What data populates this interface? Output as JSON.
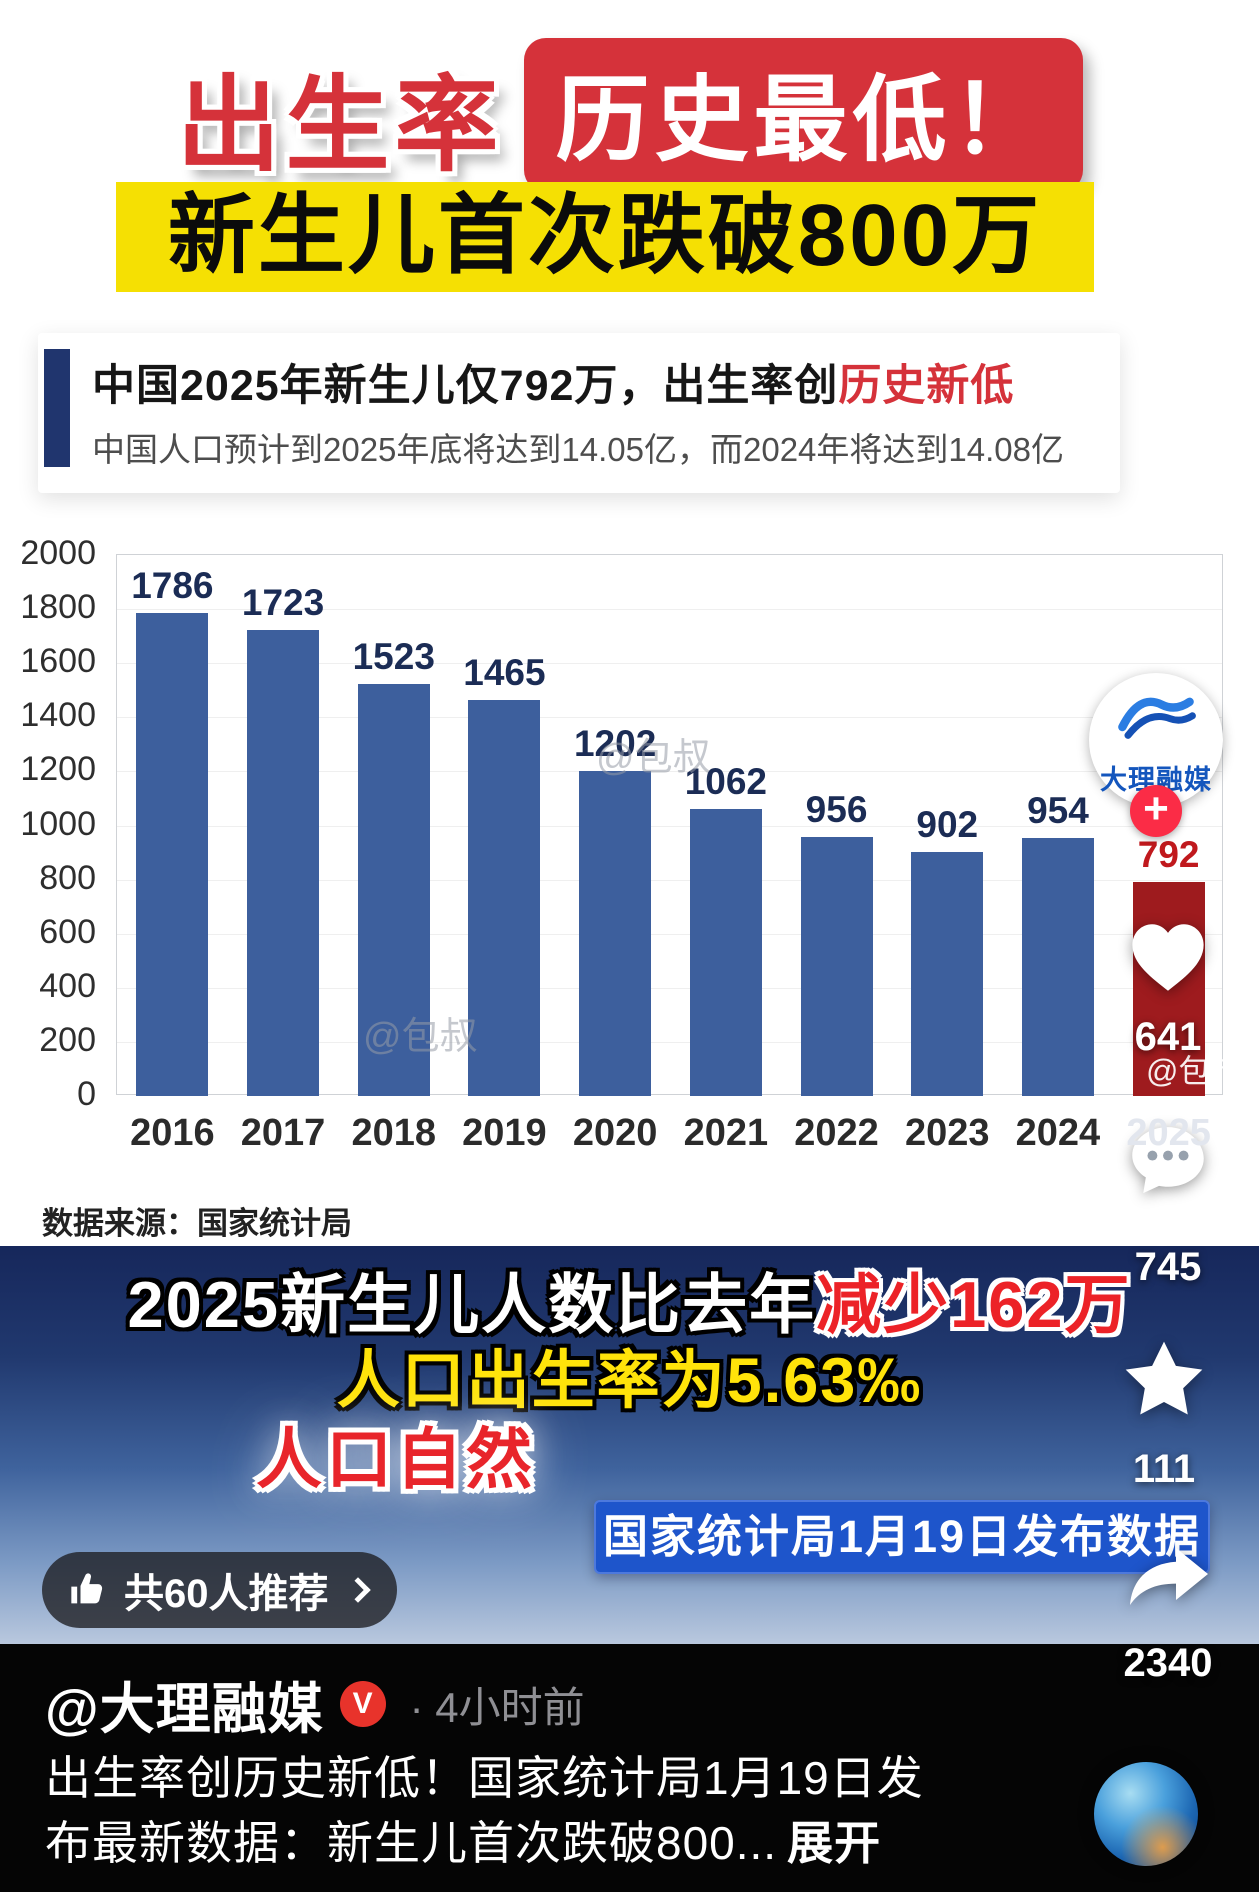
{
  "colors": {
    "accent_red": "#d5323a",
    "banner_yellow": "#f5e003",
    "bar_blue": "#3d5f9d",
    "bar_red": "#9e1b1e",
    "badge_blue": "#1e55cb"
  },
  "header": {
    "title": "出生率",
    "title_badge": "历史最低！",
    "banner": "新生儿首次跌破800万"
  },
  "info_card": {
    "headline": "中国2025年新生儿仅792万，出生率创",
    "headline_highlight": "历史新低",
    "subtitle": "中国人口预计到2025年底将达到14.05亿，而2024年将达到14.08亿"
  },
  "chart_data": {
    "type": "bar",
    "categories": [
      "2016",
      "2017",
      "2018",
      "2019",
      "2020",
      "2021",
      "2022",
      "2023",
      "2024",
      "2025"
    ],
    "values": [
      1786,
      1723,
      1523,
      1465,
      1202,
      1062,
      956,
      902,
      954,
      792
    ],
    "ylim": [
      0,
      2000
    ],
    "yticks": [
      0,
      200,
      400,
      600,
      800,
      1000,
      1200,
      1400,
      1600,
      1800,
      2000
    ],
    "grid": true,
    "legend": "none",
    "bar_color": "#3d5f9d",
    "highlight_index": 9,
    "highlight_color": "#9e1b1e",
    "source": "数据来源：国家统计局",
    "watermark": "@包叔"
  },
  "summary": {
    "line1": "2025新生儿人数比去年",
    "line1_highlight": "减少162万",
    "line2": "人口出生率为5.63‰",
    "line3": "人口自然",
    "badge": "国家统计局1月19日发布数据"
  },
  "recommend": {
    "label": "共60人推荐"
  },
  "action_rail": {
    "brand": "大理融媒",
    "follow": "+",
    "like_count": "641",
    "comment_count": "745",
    "star_count": "111",
    "share_count": "2340"
  },
  "footer": {
    "username": "@大理融媒",
    "verified": "V",
    "time": "· 4小时前",
    "description_line1": "出生率创历史新低！国家统计局1月19日发",
    "description_line2": "布最新数据：新生儿首次跌破800...",
    "expand": "展开"
  }
}
